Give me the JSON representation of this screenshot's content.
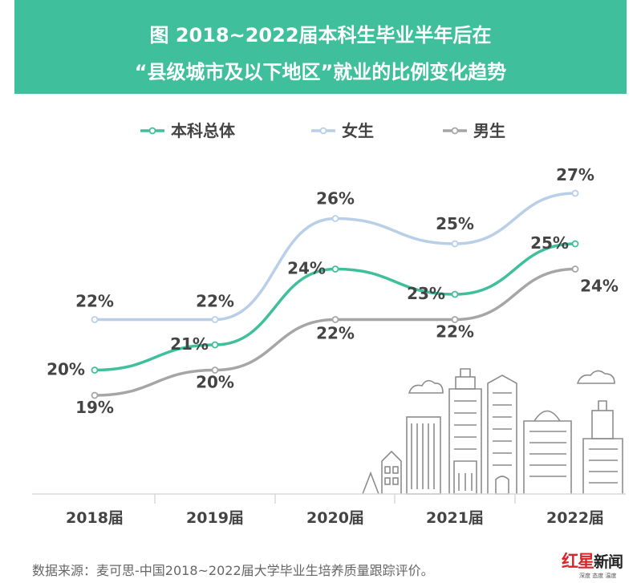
{
  "header": {
    "line1": "图  2018~2022届本科生毕业半年后在",
    "line2": "“县级城市及以下地区”就业的比例变化趋势"
  },
  "chart_data": {
    "type": "line",
    "title": "图  2018~2022届本科生毕业半年后在“县级城市及以下地区”就业的比例变化趋势",
    "categories": [
      "2018届",
      "2019届",
      "2020届",
      "2021届",
      "2022届"
    ],
    "series": [
      {
        "name": "本科总体",
        "values": [
          20,
          21,
          24,
          23,
          25
        ],
        "labels": [
          "20%",
          "21%",
          "24%",
          "23%",
          "25%"
        ],
        "color": "#3fbf9b"
      },
      {
        "name": "女生",
        "values": [
          22,
          22,
          26,
          25,
          27
        ],
        "labels": [
          "22%",
          "22%",
          "26%",
          "25%",
          "27%"
        ],
        "color": "#b9cfe8"
      },
      {
        "name": "男生",
        "values": [
          19,
          20,
          22,
          22,
          24
        ],
        "labels": [
          "19%",
          "20%",
          "22%",
          "22%",
          "24%"
        ],
        "color": "#a6a6a6"
      }
    ],
    "xlabel": "",
    "ylabel": "",
    "legend_position": "top",
    "grid": false
  },
  "footer": {
    "source": "数据来源：麦可思-中国2018~2022届大学毕业生培养质量跟踪评价。"
  },
  "logo": {
    "main": "红星",
    "news": "新闻",
    "tagline": "深度 态度 温度"
  }
}
